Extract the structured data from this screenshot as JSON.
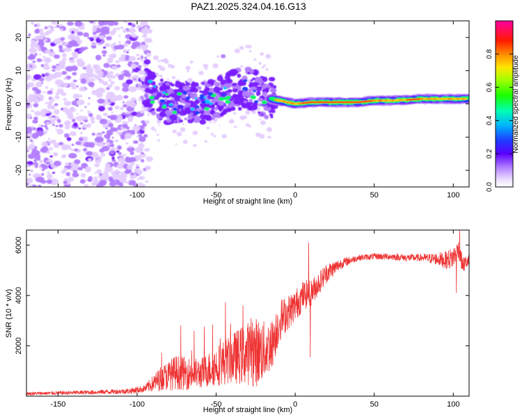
{
  "figure": {
    "title": "PAZ1.2025.324.04.16.G13"
  },
  "chart_data": [
    {
      "type": "heatmap",
      "name": "spectrogram",
      "xlabel": "Height of straight line (km)",
      "ylabel": "Frequency (Hz)",
      "xlim": [
        -170,
        110
      ],
      "ylim": [
        -25,
        25
      ],
      "xticks": [
        -150,
        -100,
        -50,
        0,
        50,
        100
      ],
      "yticks": [
        -20,
        -10,
        0,
        10,
        20
      ],
      "colorbar": {
        "label": "Normalized spectral amplitude",
        "range": [
          0,
          1
        ],
        "ticks": [
          0.0,
          0.2,
          0.4,
          0.6,
          0.8
        ],
        "tick_labels": [
          "0.0",
          "0.2",
          "0.4",
          "0.6",
          "0.8"
        ]
      },
      "ridge": {
        "x": [
          -100,
          -90,
          -80,
          -70,
          -60,
          -50,
          -40,
          -30,
          -20,
          -10,
          0,
          10,
          20,
          30,
          40,
          50,
          60,
          70,
          80,
          90,
          100,
          110
        ],
        "y": [
          8,
          3,
          0,
          1,
          0,
          2,
          4,
          5,
          2,
          1,
          0,
          0.5,
          0.5,
          0.5,
          0.5,
          1,
          1,
          1.2,
          1.5,
          1.5,
          1.5,
          1.5
        ]
      },
      "colormap": [
        "#ffffff",
        "#e4ccff",
        "#b27cff",
        "#7a1cff",
        "#4a1cff",
        "#1c3cff",
        "#00c8ff",
        "#00ff60",
        "#c8ff00",
        "#ffc000",
        "#ff4a00",
        "#ff0080"
      ]
    },
    {
      "type": "line",
      "name": "snr",
      "xlabel": "Height of straight line (km)",
      "ylabel": "SNR (10 * v/v)",
      "xlim": [
        -170,
        110
      ],
      "ylim": [
        0,
        6600
      ],
      "xticks": [
        -150,
        -100,
        -50,
        0,
        50,
        100
      ],
      "yticks": [
        2000,
        4000,
        6000
      ],
      "color": "#ee3333",
      "envelope": {
        "x": [
          -170,
          -130,
          -105,
          -95,
          -85,
          -75,
          -70,
          -60,
          -50,
          -40,
          -30,
          -20,
          -15,
          -10,
          -5,
          0,
          5,
          10,
          15,
          20,
          30,
          40,
          50,
          60,
          70,
          80,
          90,
          95,
          100,
          103,
          106,
          110
        ],
        "y": [
          100,
          150,
          200,
          300,
          700,
          950,
          900,
          900,
          1200,
          1500,
          1700,
          1800,
          2000,
          3000,
          3300,
          3600,
          4000,
          4100,
          4500,
          4900,
          5300,
          5500,
          5550,
          5550,
          5500,
          5500,
          5450,
          5400,
          5500,
          5900,
          5200,
          5400
        ]
      },
      "noise_amplitude": {
        "x": [
          -170,
          -110,
          -95,
          -85,
          -75,
          -60,
          -40,
          -25,
          -15,
          -5,
          5,
          20,
          30,
          40,
          80,
          90,
          100,
          105,
          110
        ],
        "y": [
          60,
          100,
          150,
          500,
          700,
          600,
          1000,
          1400,
          1000,
          700,
          600,
          400,
          200,
          120,
          150,
          250,
          450,
          350,
          250
        ]
      },
      "spikes": [
        {
          "x": 8.5,
          "y": 6100
        },
        {
          "x": 9.5,
          "y": 1550
        },
        {
          "x": -33,
          "y": 3600
        },
        {
          "x": -28,
          "y": 3100
        },
        {
          "x": 102,
          "y": 4100
        },
        {
          "x": 104,
          "y": 6600
        }
      ]
    }
  ]
}
